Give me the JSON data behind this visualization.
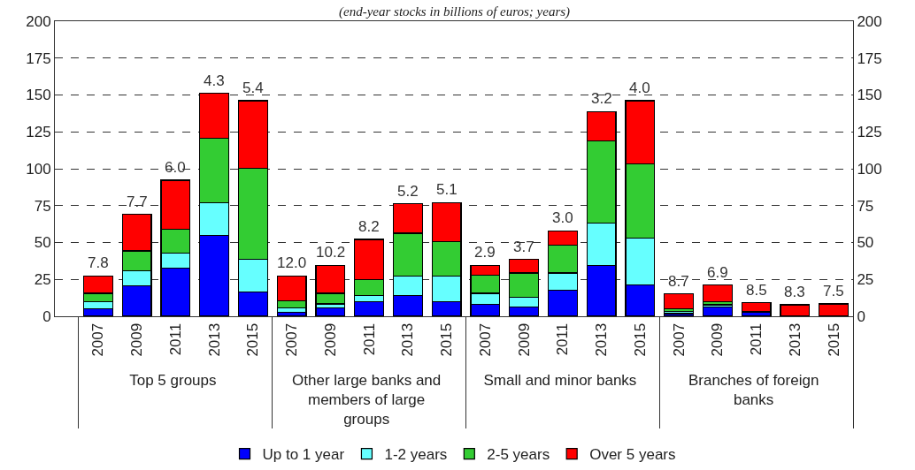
{
  "chart_data": {
    "type": "bar",
    "stacked": true,
    "subtitle": "(end-year stocks in billions of euros; years)",
    "categories": [
      "2007",
      "2009",
      "2011",
      "2013",
      "2015",
      "2007",
      "2009",
      "2011",
      "2013",
      "2015",
      "2007",
      "2009",
      "2011",
      "2013",
      "2015",
      "2007",
      "2009",
      "2011",
      "2013",
      "2015"
    ],
    "annotations": [
      "Top 5 groups",
      "Other large banks and members of large groups",
      "Small and minor banks",
      "Branches of foreign banks",
      "7.8",
      "7.7",
      "6.0",
      "4.3",
      "5.4",
      "12.0",
      "10.2",
      "8.2",
      "5.2",
      "5.1",
      "2.9",
      "3.7",
      "3.0",
      "3.2",
      "4.0",
      "8.7",
      "6.9",
      "8.5",
      "8.3",
      "7.5"
    ],
    "series": [
      {
        "name": "Up to 1 year",
        "color": "#0000ff",
        "values": [
          5.3,
          20.9,
          32.6,
          54.7,
          16.6,
          2.5,
          5.9,
          9.8,
          14.3,
          9.8,
          8.2,
          6.4,
          17.6,
          34.6,
          21.1,
          1.8,
          6.3,
          2.5,
          0.2,
          0.2
        ]
      },
      {
        "name": "1-2 years",
        "color": "#66ffff",
        "values": [
          4.5,
          10.0,
          10.0,
          22.4,
          22.1,
          3.4,
          2.5,
          4.5,
          13.0,
          17.5,
          7.4,
          6.3,
          11.7,
          28.5,
          32.0,
          1.5,
          1.5,
          0.3,
          0.1,
          0.1
        ]
      },
      {
        "name": "2-5 years",
        "color": "#33cc33",
        "values": [
          5.8,
          13.4,
          16.4,
          43.6,
          61.7,
          4.8,
          7.2,
          10.7,
          29.0,
          23.1,
          12.3,
          16.6,
          19.1,
          56.0,
          50.0,
          1.6,
          2.0,
          0.2,
          0.1,
          0.1
        ]
      },
      {
        "name": "Over 5 years",
        "color": "#ff0000",
        "values": [
          11.7,
          24.7,
          33.2,
          30.3,
          45.7,
          16.6,
          19.0,
          27.1,
          19.9,
          26.7,
          6.7,
          9.2,
          9.6,
          19.6,
          43.0,
          10.3,
          11.3,
          6.2,
          7.4,
          8.0
        ]
      }
    ],
    "ylim": [
      0,
      200
    ],
    "yticks": [
      0,
      25,
      50,
      75,
      100,
      125,
      150,
      175,
      200
    ],
    "y2lim": [
      0,
      200
    ],
    "y2ticks": [
      0,
      25,
      50,
      75,
      100,
      125,
      150,
      175,
      200
    ],
    "grid": "y",
    "legend": "bottom"
  }
}
